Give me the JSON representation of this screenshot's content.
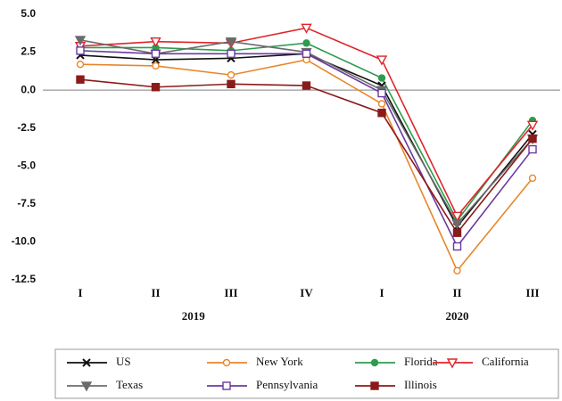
{
  "chart_data": {
    "type": "line",
    "categories": [
      "I",
      "II",
      "III",
      "IV",
      "I",
      "II",
      "III"
    ],
    "x_groups": [
      {
        "label": "2019",
        "count": 4
      },
      {
        "label": "2020",
        "count": 3
      }
    ],
    "ylim": [
      -12.5,
      5
    ],
    "yticks": [
      {
        "value": 5,
        "label": "5.0"
      },
      {
        "value": 2.5,
        "label": "2.5"
      },
      {
        "value": 0,
        "label": "0.0"
      },
      {
        "value": -2.5,
        "label": "-2.5"
      },
      {
        "value": -5,
        "label": "-5.0"
      },
      {
        "value": -7.5,
        "label": "-7.5"
      },
      {
        "value": -10,
        "label": "-10.0"
      },
      {
        "value": -12.5,
        "label": "-12.5"
      }
    ],
    "series": [
      {
        "name": "US",
        "color": "#111111",
        "marker": "x",
        "values": [
          2.3,
          2.0,
          2.1,
          2.4,
          0.3,
          -9.0,
          -2.9
        ]
      },
      {
        "name": "New York",
        "color": "#e8862a",
        "marker": "circle-open",
        "values": [
          1.7,
          1.6,
          1.0,
          2.0,
          -0.9,
          -11.9,
          -5.8
        ]
      },
      {
        "name": "Florida",
        "color": "#2e9b4e",
        "marker": "circle",
        "values": [
          2.8,
          2.8,
          2.6,
          3.1,
          0.8,
          -8.6,
          -2.0
        ]
      },
      {
        "name": "California",
        "color": "#e0242a",
        "marker": "triangle-open",
        "values": [
          2.9,
          3.2,
          3.1,
          4.1,
          2.0,
          -8.3,
          -2.3
        ]
      },
      {
        "name": "Texas",
        "color": "#6b6b6b",
        "marker": "triangle",
        "values": [
          3.3,
          2.4,
          3.2,
          2.5,
          0.0,
          -8.8,
          -3.2
        ]
      },
      {
        "name": "Pennsylvania",
        "color": "#6a3aa0",
        "marker": "square-open",
        "values": [
          2.6,
          2.4,
          2.4,
          2.4,
          -0.2,
          -10.3,
          -3.9
        ]
      },
      {
        "name": "Illinois",
        "color": "#8b1a1a",
        "marker": "square",
        "values": [
          0.7,
          0.2,
          0.4,
          0.3,
          -1.5,
          -9.4,
          -3.2
        ]
      }
    ]
  }
}
